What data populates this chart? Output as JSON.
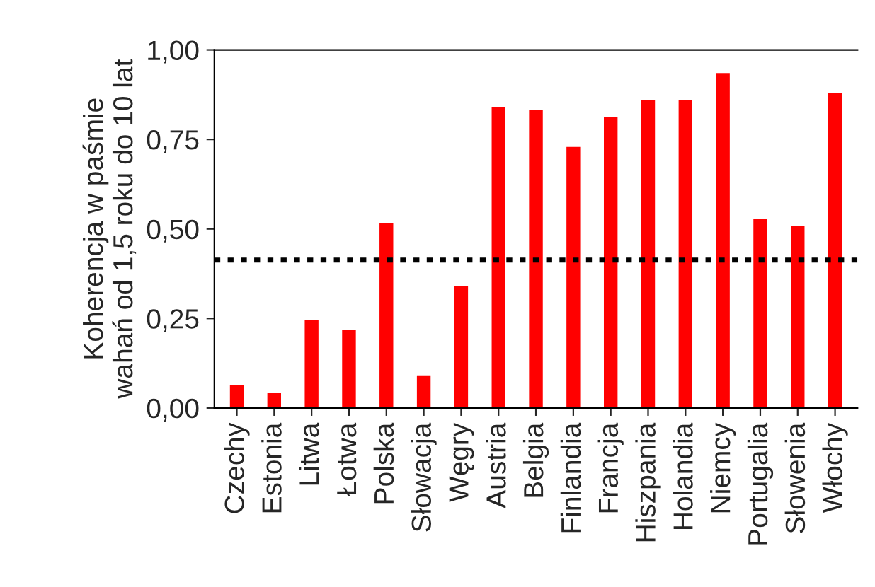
{
  "chart_data": {
    "type": "bar",
    "ylabel": "Koherencja w paśmie\nwahań od 1,5 roku do 10 lat",
    "categories": [
      "Czechy",
      "Estonia",
      "Litwa",
      "Łotwa",
      "Polska",
      "Słowacja",
      "Węgry",
      "Austria",
      "Belgia",
      "Finlandia",
      "Francja",
      "Hiszpania",
      "Holandia",
      "Niemcy",
      "Portugalia",
      "Słowenia",
      "Włochy"
    ],
    "values": [
      0.066,
      0.046,
      0.248,
      0.221,
      0.518,
      0.094,
      0.343,
      0.843,
      0.835,
      0.732,
      0.815,
      0.862,
      0.862,
      0.938,
      0.53,
      0.51,
      0.882
    ],
    "color": "#ff0000",
    "ylim": [
      0,
      1
    ],
    "yticks": [
      {
        "value": 0,
        "label": "0,00"
      },
      {
        "value": 0.25,
        "label": "0,25"
      },
      {
        "value": 0.5,
        "label": "0,50"
      },
      {
        "value": 0.75,
        "label": "0,75"
      },
      {
        "value": 1,
        "label": "1,00"
      }
    ],
    "ref_lines": [
      {
        "axis": "y",
        "value": 0.413,
        "color": "#000000",
        "line_style": "dotted"
      }
    ],
    "grid": false
  }
}
